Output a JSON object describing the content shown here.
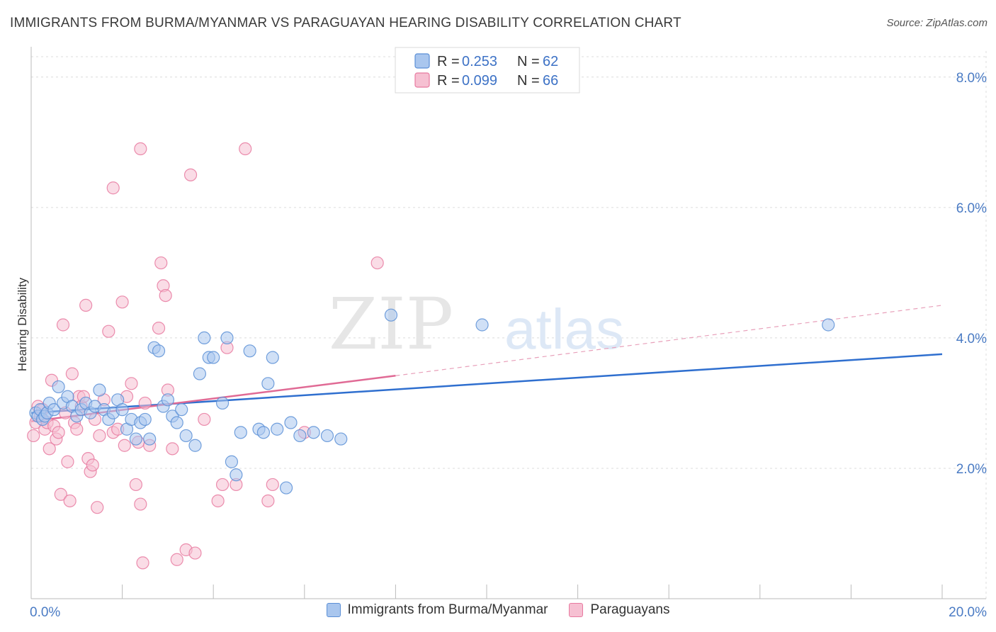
{
  "title": "IMMIGRANTS FROM BURMA/MYANMAR VS PARAGUAYAN HEARING DISABILITY CORRELATION CHART",
  "source": "Source: ZipAtlas.com",
  "watermark": {
    "zip": "ZIP",
    "atlas": "atlas"
  },
  "chart_data": {
    "type": "scatter",
    "title": "IMMIGRANTS FROM BURMA/MYANMAR VS PARAGUAYAN HEARING DISABILITY CORRELATION CHART",
    "xlabel": "",
    "ylabel": "Hearing Disability",
    "xlim": [
      0,
      20
    ],
    "ylim": [
      0,
      8.4
    ],
    "x_tick_labels": [
      "0.0%",
      "20.0%"
    ],
    "y_ticks": [
      2,
      4,
      6,
      8
    ],
    "y_tick_labels": [
      "2.0%",
      "4.0%",
      "6.0%",
      "8.0%"
    ],
    "grid": true,
    "legend_top": [
      {
        "r_label": "R =",
        "r_value": "0.253",
        "n_label": "N =",
        "n_value": "62"
      },
      {
        "r_label": "R =",
        "r_value": "0.099",
        "n_label": "N =",
        "n_value": "66"
      }
    ],
    "series": [
      {
        "name": "Immigrants from Burma/Myanmar",
        "color": "#5b8fd6",
        "fill": "#a9c6ee",
        "trend": {
          "x0": 0,
          "y0": 2.85,
          "x1": 20,
          "y1": 3.75
        },
        "points": [
          [
            0.1,
            2.85
          ],
          [
            0.15,
            2.8
          ],
          [
            0.2,
            2.9
          ],
          [
            0.25,
            2.75
          ],
          [
            0.3,
            2.8
          ],
          [
            0.35,
            2.85
          ],
          [
            0.4,
            3.0
          ],
          [
            0.5,
            2.9
          ],
          [
            0.6,
            3.25
          ],
          [
            0.7,
            3.0
          ],
          [
            0.8,
            3.1
          ],
          [
            0.9,
            2.95
          ],
          [
            1.0,
            2.8
          ],
          [
            1.1,
            2.9
          ],
          [
            1.2,
            3.0
          ],
          [
            1.3,
            2.85
          ],
          [
            1.4,
            2.95
          ],
          [
            1.5,
            3.2
          ],
          [
            1.6,
            2.9
          ],
          [
            1.7,
            2.75
          ],
          [
            1.8,
            2.85
          ],
          [
            1.9,
            3.05
          ],
          [
            2.0,
            2.9
          ],
          [
            2.1,
            2.6
          ],
          [
            2.2,
            2.75
          ],
          [
            2.3,
            2.45
          ],
          [
            2.4,
            2.7
          ],
          [
            2.5,
            2.75
          ],
          [
            2.6,
            2.45
          ],
          [
            2.7,
            3.85
          ],
          [
            2.8,
            3.8
          ],
          [
            2.9,
            2.95
          ],
          [
            3.0,
            3.05
          ],
          [
            3.1,
            2.8
          ],
          [
            3.2,
            2.7
          ],
          [
            3.3,
            2.9
          ],
          [
            3.4,
            2.5
          ],
          [
            3.6,
            2.35
          ],
          [
            3.7,
            3.45
          ],
          [
            3.8,
            4.0
          ],
          [
            3.9,
            3.7
          ],
          [
            4.0,
            3.7
          ],
          [
            4.2,
            3.0
          ],
          [
            4.3,
            4.0
          ],
          [
            4.4,
            2.1
          ],
          [
            4.5,
            1.9
          ],
          [
            4.6,
            2.55
          ],
          [
            4.8,
            3.8
          ],
          [
            5.0,
            2.6
          ],
          [
            5.1,
            2.55
          ],
          [
            5.2,
            3.3
          ],
          [
            5.3,
            3.7
          ],
          [
            5.4,
            2.6
          ],
          [
            5.6,
            1.7
          ],
          [
            5.7,
            2.7
          ],
          [
            5.9,
            2.5
          ],
          [
            6.2,
            2.55
          ],
          [
            6.5,
            2.5
          ],
          [
            6.8,
            2.45
          ],
          [
            7.9,
            4.35
          ],
          [
            9.9,
            4.2
          ],
          [
            17.5,
            4.2
          ]
        ]
      },
      {
        "name": "Paraguayans",
        "color": "#e87aa0",
        "fill": "#f6c0d2",
        "trend": {
          "x0": 0,
          "y0": 2.72,
          "x1": 8.0,
          "y1": 3.42
        },
        "trend_dashed": {
          "x0": 8.0,
          "y0": 3.42,
          "x1": 20,
          "y1": 4.5
        },
        "points": [
          [
            0.05,
            2.5
          ],
          [
            0.1,
            2.7
          ],
          [
            0.15,
            2.95
          ],
          [
            0.2,
            2.8
          ],
          [
            0.25,
            2.9
          ],
          [
            0.3,
            2.6
          ],
          [
            0.35,
            2.7
          ],
          [
            0.4,
            2.3
          ],
          [
            0.45,
            3.35
          ],
          [
            0.5,
            2.65
          ],
          [
            0.55,
            2.45
          ],
          [
            0.6,
            2.55
          ],
          [
            0.65,
            1.6
          ],
          [
            0.7,
            4.2
          ],
          [
            0.75,
            2.85
          ],
          [
            0.8,
            2.1
          ],
          [
            0.85,
            1.5
          ],
          [
            0.9,
            3.45
          ],
          [
            0.95,
            2.7
          ],
          [
            1.0,
            2.6
          ],
          [
            1.05,
            3.1
          ],
          [
            1.1,
            2.95
          ],
          [
            1.15,
            3.1
          ],
          [
            1.2,
            4.5
          ],
          [
            1.25,
            2.15
          ],
          [
            1.3,
            1.95
          ],
          [
            1.35,
            2.05
          ],
          [
            1.4,
            2.75
          ],
          [
            1.45,
            1.4
          ],
          [
            1.5,
            2.5
          ],
          [
            1.6,
            3.05
          ],
          [
            1.7,
            4.1
          ],
          [
            1.8,
            2.55
          ],
          [
            1.9,
            2.6
          ],
          [
            2.0,
            4.55
          ],
          [
            2.05,
            2.35
          ],
          [
            2.1,
            3.1
          ],
          [
            2.2,
            3.3
          ],
          [
            2.3,
            1.75
          ],
          [
            2.35,
            2.4
          ],
          [
            2.4,
            1.45
          ],
          [
            2.45,
            0.55
          ],
          [
            2.5,
            3.0
          ],
          [
            2.6,
            2.35
          ],
          [
            2.8,
            4.15
          ],
          [
            2.85,
            5.15
          ],
          [
            2.9,
            4.8
          ],
          [
            2.95,
            4.65
          ],
          [
            3.0,
            3.2
          ],
          [
            3.1,
            2.3
          ],
          [
            3.2,
            0.6
          ],
          [
            3.4,
            0.75
          ],
          [
            3.5,
            6.5
          ],
          [
            3.6,
            0.7
          ],
          [
            3.8,
            2.75
          ],
          [
            4.1,
            1.5
          ],
          [
            4.2,
            1.75
          ],
          [
            4.3,
            3.85
          ],
          [
            4.5,
            1.75
          ],
          [
            5.2,
            1.5
          ],
          [
            5.3,
            1.75
          ],
          [
            2.4,
            6.9
          ],
          [
            4.7,
            6.9
          ],
          [
            1.8,
            6.3
          ],
          [
            7.6,
            5.15
          ],
          [
            6.0,
            2.55
          ]
        ]
      }
    ]
  }
}
